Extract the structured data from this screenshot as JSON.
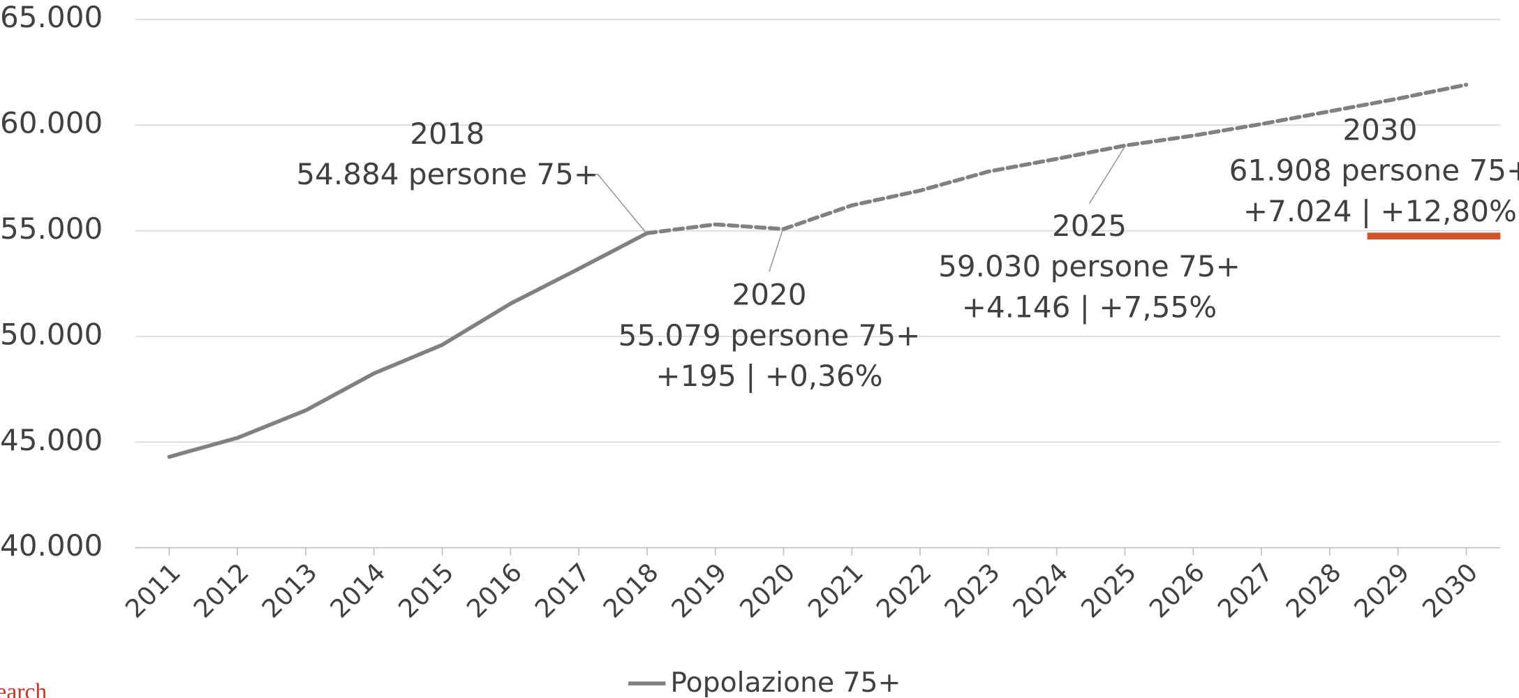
{
  "chart_data": {
    "type": "line",
    "categories": [
      "2011",
      "2012",
      "2013",
      "2014",
      "2015",
      "2016",
      "2017",
      "2018",
      "2019",
      "2020",
      "2021",
      "2022",
      "2023",
      "2024",
      "2025",
      "2026",
      "2027",
      "2028",
      "2029",
      "2030"
    ],
    "series": [
      {
        "name": "Popolazione 75+",
        "color": "#808080",
        "values": [
          44300,
          45200,
          46500,
          48250,
          49600,
          51550,
          53200,
          54884,
          55300,
          55079,
          56200,
          56900,
          57800,
          58400,
          59030,
          59500,
          60050,
          60650,
          61250,
          61908
        ]
      }
    ],
    "dashed_from": "2018",
    "ylim": [
      40000,
      65000
    ],
    "yticks": [
      {
        "value": 40000,
        "label": "40.000"
      },
      {
        "value": 45000,
        "label": "45.000"
      },
      {
        "value": 50000,
        "label": "50.000"
      },
      {
        "value": 55000,
        "label": "55.000"
      },
      {
        "value": 60000,
        "label": "60.000"
      },
      {
        "value": 65000,
        "label": "65.000"
      }
    ],
    "grid": true,
    "legend": "bottom",
    "annotations": [
      {
        "x": "2018",
        "text": [
          "2018",
          "54.884 persone 75+"
        ]
      },
      {
        "x": "2020",
        "text": [
          "2020",
          "55.079 persone 75+",
          "+195 | +0,36%"
        ]
      },
      {
        "x": "2025",
        "text": [
          "2025",
          "59.030 persone 75+",
          "+4.146 | +7,55%"
        ]
      },
      {
        "x": "2030",
        "text": [
          "2030",
          "61.908 persone 75+",
          "+7.024 | +12,80%"
        ]
      }
    ],
    "source_fragment": "earch"
  }
}
